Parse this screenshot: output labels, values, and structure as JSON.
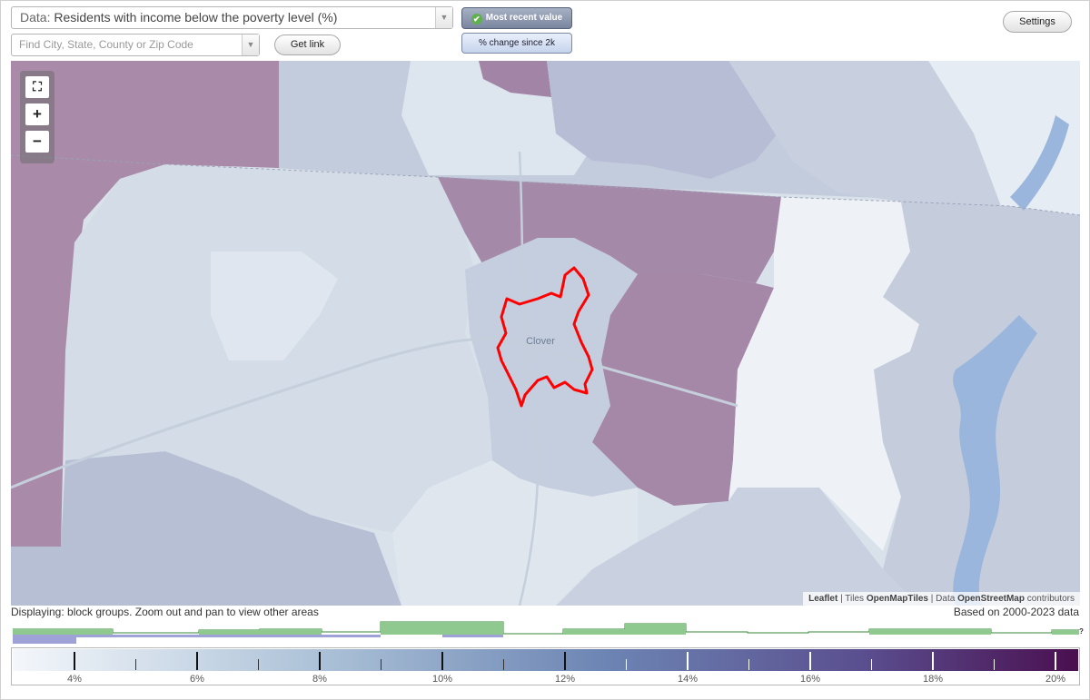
{
  "controls": {
    "data_prefix": "Data:",
    "data_value": "Residents with income below the poverty level (%)",
    "search_placeholder": "Find City, State, County or Zip Code",
    "get_link": "Get link",
    "most_recent": "Most recent value",
    "pct_change": "% change since 2k",
    "settings": "Settings"
  },
  "map": {
    "city_label": "Clover",
    "attribution": {
      "leaflet": "Leaflet",
      "sep1": " | Tiles ",
      "tiles": "OpenMapTiles",
      "sep2": " | Data ",
      "data": "OpenStreetMap",
      "contrib": " contributors"
    },
    "zoom": {
      "fullscreen": "⛶",
      "in": "+",
      "out": "−"
    },
    "colors": {
      "highlight": "#ff0000",
      "high": "#a588a8",
      "low": "#eef2f6",
      "water": "#9ab6dc"
    }
  },
  "status": {
    "displaying": "Displaying: block groups. Zoom out and pan to view other areas",
    "based_on": "Based on 2000-2023 data"
  },
  "histogram": {
    "unknown_marker": "?"
  },
  "legend": {
    "ticks": [
      "4%",
      "6%",
      "8%",
      "10%",
      "12%",
      "14%",
      "16%",
      "18%",
      "20%"
    ],
    "color_start": "#f4f7fb",
    "color_end": "#4a0f4f"
  }
}
